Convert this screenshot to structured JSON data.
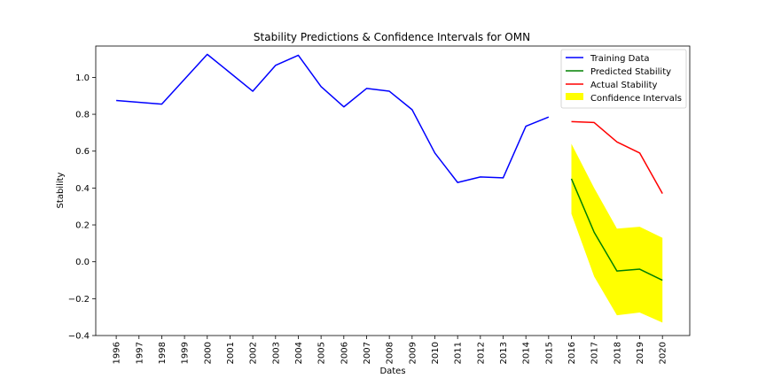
{
  "chart_data": {
    "type": "line",
    "title": "Stability Predictions & Confidence Intervals for OMN",
    "xlabel": "Dates",
    "ylabel": "Stability",
    "ylim": [
      -0.4,
      1.17
    ],
    "xlim": [
      1995.1,
      2021.2
    ],
    "grid": false,
    "legend_position": "top-right",
    "x_ticks": [
      "1996",
      "1997",
      "1998",
      "1999",
      "2000",
      "2001",
      "2002",
      "2003",
      "2004",
      "2005",
      "2006",
      "2007",
      "2008",
      "2009",
      "2010",
      "2011",
      "2012",
      "2013",
      "2014",
      "2015",
      "2016",
      "2017",
      "2018",
      "2019",
      "2020"
    ],
    "y_ticks": [
      "-0.4",
      "-0.2",
      "0.0",
      "0.2",
      "0.4",
      "0.6",
      "0.8",
      "1.0"
    ],
    "y_tick_values": [
      -0.4,
      -0.2,
      0.0,
      0.2,
      0.4,
      0.6,
      0.8,
      1.0
    ],
    "series": [
      {
        "name": "Training Data",
        "color": "#0000ff",
        "x": [
          1996,
          1998,
          2000,
          2002,
          2003,
          2004,
          2005,
          2006,
          2007,
          2008,
          2009,
          2010,
          2011,
          2012,
          2013,
          2014,
          2015
        ],
        "values": [
          0.875,
          0.855,
          1.125,
          0.925,
          1.065,
          1.12,
          0.95,
          0.84,
          0.94,
          0.925,
          0.825,
          0.59,
          0.43,
          0.46,
          0.455,
          0.735,
          0.785
        ]
      },
      {
        "name": "Predicted Stability",
        "color": "#008000",
        "x": [
          2016,
          2017,
          2018,
          2019,
          2020
        ],
        "values": [
          0.45,
          0.16,
          -0.05,
          -0.04,
          -0.1
        ]
      },
      {
        "name": "Actual Stability",
        "color": "#ff0000",
        "x": [
          2016,
          2017,
          2018,
          2019,
          2020
        ],
        "values": [
          0.76,
          0.755,
          0.65,
          0.59,
          0.37
        ]
      }
    ],
    "confidence_interval": {
      "name": "Confidence Intervals",
      "color": "#ffff00",
      "x": [
        2016,
        2017,
        2018,
        2019,
        2020
      ],
      "lower": [
        0.26,
        -0.08,
        -0.29,
        -0.275,
        -0.33
      ],
      "upper": [
        0.64,
        0.4,
        0.18,
        0.19,
        0.13
      ]
    }
  }
}
